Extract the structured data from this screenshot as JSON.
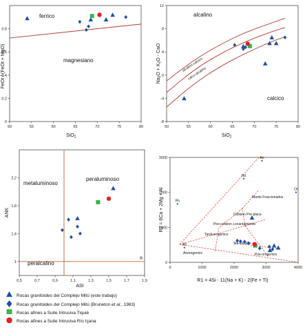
{
  "chart_data": [
    {
      "id": "a",
      "type": "scatter",
      "xlabel": "SiO2",
      "ylabel": "FeOt / (FeOt + MgO)",
      "xlim": [
        50,
        80
      ],
      "ylim": [
        0.0,
        1.0
      ],
      "xticks": [
        50,
        55,
        60,
        65,
        70,
        75,
        80
      ],
      "yticks": [
        0.0,
        0.2,
        0.4,
        0.6,
        0.8
      ],
      "regions": [
        "ferrico",
        "magnesiano"
      ],
      "boundary": [
        [
          50,
          0.72
        ],
        [
          80,
          0.84
        ]
      ],
      "series": [
        {
          "key": "tri",
          "x": [
            54.0,
            68.5,
            72.0,
            73.5
          ],
          "y": [
            0.89,
            0.88,
            0.88,
            0.92
          ]
        },
        {
          "key": "dia",
          "x": [
            66.0,
            67.5,
            68.0,
            76.5
          ],
          "y": [
            0.86,
            0.79,
            0.82,
            0.9
          ]
        },
        {
          "key": "sq",
          "x": [
            68.8
          ],
          "y": [
            0.91
          ]
        },
        {
          "key": "ci",
          "x": [
            70.5
          ],
          "y": [
            0.92
          ]
        }
      ]
    },
    {
      "id": "b",
      "type": "scatter",
      "xlabel": "SiO2",
      "ylabel": "Na2O + K2O - CaO",
      "xlim": [
        50,
        80
      ],
      "ylim": [
        -8,
        12
      ],
      "xticks": [
        50,
        55,
        60,
        65,
        70,
        75,
        80
      ],
      "yticks": [
        -8,
        -4,
        0,
        4,
        8,
        12
      ],
      "regions": [
        "alcalino",
        "alcalino-calcico",
        "calco-alcalino",
        "calcico"
      ],
      "curves": [
        [
          [
            50,
            -1.0
          ],
          [
            56,
            2.5
          ],
          [
            62,
            5.2
          ],
          [
            68,
            7.4
          ],
          [
            74,
            9.0
          ],
          [
            77,
            9.8
          ]
        ],
        [
          [
            50,
            -3.0
          ],
          [
            56,
            0.8
          ],
          [
            62,
            3.6
          ],
          [
            68,
            5.8
          ],
          [
            74,
            7.5
          ],
          [
            77,
            8.2
          ]
        ],
        [
          [
            50,
            -5.5
          ],
          [
            56,
            -1.6
          ],
          [
            62,
            1.4
          ],
          [
            68,
            3.8
          ],
          [
            74,
            5.8
          ],
          [
            77,
            6.6
          ]
        ]
      ],
      "series": [
        {
          "key": "tri",
          "x": [
            54.0,
            67.5,
            72.5,
            73.5,
            74.0,
            75.0
          ],
          "y": [
            -4.0,
            5.0,
            2.0,
            5.5,
            6.5,
            5.5
          ]
        },
        {
          "key": "dia",
          "x": [
            65.5,
            67.5,
            68.0,
            77.0
          ],
          "y": [
            5.2,
            4.5,
            4.8,
            6.5
          ]
        },
        {
          "key": "sq",
          "x": [
            69.0
          ],
          "y": [
            5.0
          ]
        },
        {
          "key": "ci",
          "x": [
            68.5
          ],
          "y": [
            5.4
          ]
        }
      ]
    },
    {
      "id": "c",
      "type": "scatter",
      "xlabel": "ASI",
      "ylabel": "ANK",
      "xlim": [
        0.5,
        1.9
      ],
      "ylim": [
        0.8,
        2.6
      ],
      "xticks": [
        0.5,
        0.7,
        0.9,
        1.1,
        1.3,
        1.5,
        1.7,
        1.9
      ],
      "xtick_labels": [
        "0,5",
        "0,7",
        "0,9",
        "1,1",
        "1,3",
        "1,5",
        "1,7",
        "1,9"
      ],
      "yticks": [
        1.0,
        1.4,
        1.8,
        2.2
      ],
      "ytick_labels": [
        "1",
        "1,4",
        "1,8",
        "2,2"
      ],
      "regions": [
        "metaluminoso",
        "peraluminoso",
        "peralcalino"
      ],
      "vline": 1.0,
      "hline": 1.0,
      "series": [
        {
          "key": "tri",
          "x": [
            1.15,
            1.55
          ],
          "y": [
            1.62,
            2.05
          ]
        },
        {
          "key": "dia",
          "x": [
            0.98,
            1.05,
            1.08,
            1.15,
            1.18
          ],
          "y": [
            1.45,
            1.6,
            1.35,
            1.5,
            1.4
          ]
        },
        {
          "key": "sq",
          "x": [
            1.38
          ],
          "y": [
            1.85
          ]
        },
        {
          "key": "ci",
          "x": [
            1.5
          ],
          "y": [
            1.9
          ]
        }
      ],
      "annotation": {
        "text": "Bi",
        "x": 1.87,
        "y": 1.03
      }
    },
    {
      "id": "d",
      "type": "scatter",
      "xlabel": "R1 = 4Si - 11(Na + K) - 2(Fe + Ti)",
      "ylabel": "R2 = 6Ca + 2Mg + Al",
      "xlim": [
        0,
        4000
      ],
      "ylim": [
        0,
        3000
      ],
      "xticks": [
        0,
        1000,
        2000,
        3000,
        4000
      ],
      "yticks": [
        0,
        1000,
        2000,
        3000
      ],
      "regions": [
        "Manto Fraccionados",
        "Colision Pre-placa",
        "Pos-colision Levantamiento",
        "Tardi-orogenico",
        "Sin-colision",
        "Anorogenico",
        "Pos-orogenico"
      ],
      "mineral_labels": [
        {
          "text": "An",
          "x": 2870,
          "y": 2960
        },
        {
          "text": "Hd",
          "x": 2300,
          "y": 2450
        },
        {
          "text": "Ph",
          "x": 230,
          "y": 1730
        },
        {
          "text": "Ab",
          "x": 450,
          "y": 480
        },
        {
          "text": "Or",
          "x": 3960,
          "y": 2060
        }
      ],
      "series": [
        {
          "key": "tri",
          "x": [
            2560,
            3120,
            3250,
            3380
          ],
          "y": [
            1280,
            350,
            480,
            420
          ]
        },
        {
          "key": "dia",
          "x": [
            2100,
            2200,
            2330,
            2450,
            2800,
            3100,
            3200
          ],
          "y": [
            620,
            600,
            590,
            550,
            400,
            450,
            370
          ]
        },
        {
          "key": "sq",
          "x": [
            2660
          ],
          "y": [
            480
          ]
        },
        {
          "key": "ci",
          "x": [
            2640
          ],
          "y": [
            520
          ]
        }
      ]
    }
  ],
  "legend": [
    {
      "key": "tri",
      "color": "#1f4e9e",
      "label": "Rocas granitoides del Complejo Mitú (este trabajo)"
    },
    {
      "key": "dia",
      "color": "#1f4e9e",
      "label_pre": "Rocas granitoides del Complejo Mitú (Bruneton ",
      "label_it": "et al.",
      "label_post": ", 1983)"
    },
    {
      "key": "sq",
      "color": "#3bb34a",
      "label": "Rocas afines a Suite Intrusiva Tiquié"
    },
    {
      "key": "ci",
      "color": "#e22027",
      "label": "Rocas afines a Suite Intrusiva Río Içana"
    }
  ]
}
